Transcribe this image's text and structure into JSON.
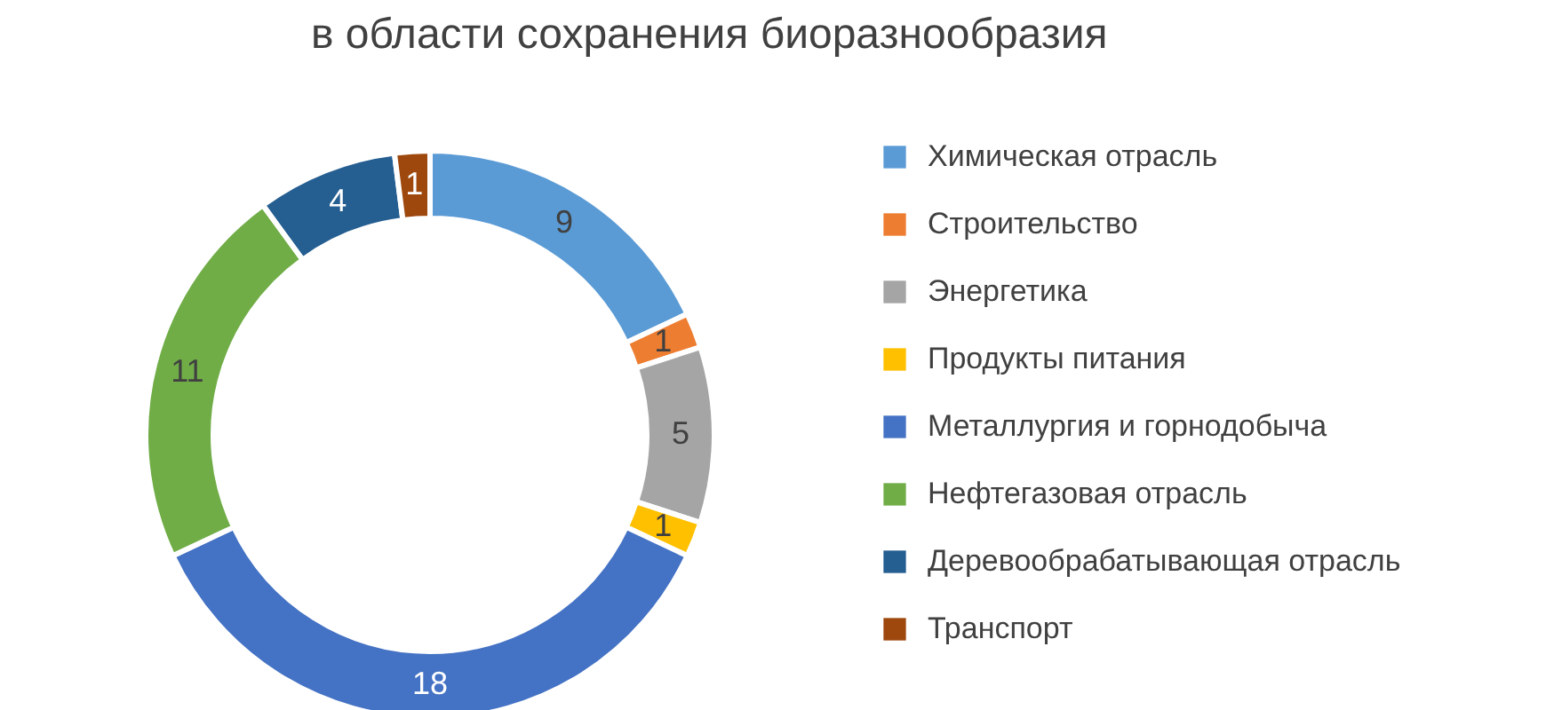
{
  "chart_data": {
    "type": "donut",
    "title": "в области сохранения биоразнообразия",
    "categories": [
      "Химическая отрасль",
      "Строительство",
      "Энергетика",
      "Продукты питания",
      "Металлургия и горнодобыча",
      "Нефтегазовая отрасль",
      "Деревообрабатывающая отрасль",
      "Транспорт"
    ],
    "values": [
      9,
      1,
      5,
      1,
      18,
      11,
      4,
      1
    ],
    "colors": [
      "#5b9bd5",
      "#ed7d31",
      "#a5a5a5",
      "#ffc000",
      "#4472c4",
      "#70ad47",
      "#255e91",
      "#9e480e"
    ],
    "data_labels": true,
    "legend": "right"
  }
}
